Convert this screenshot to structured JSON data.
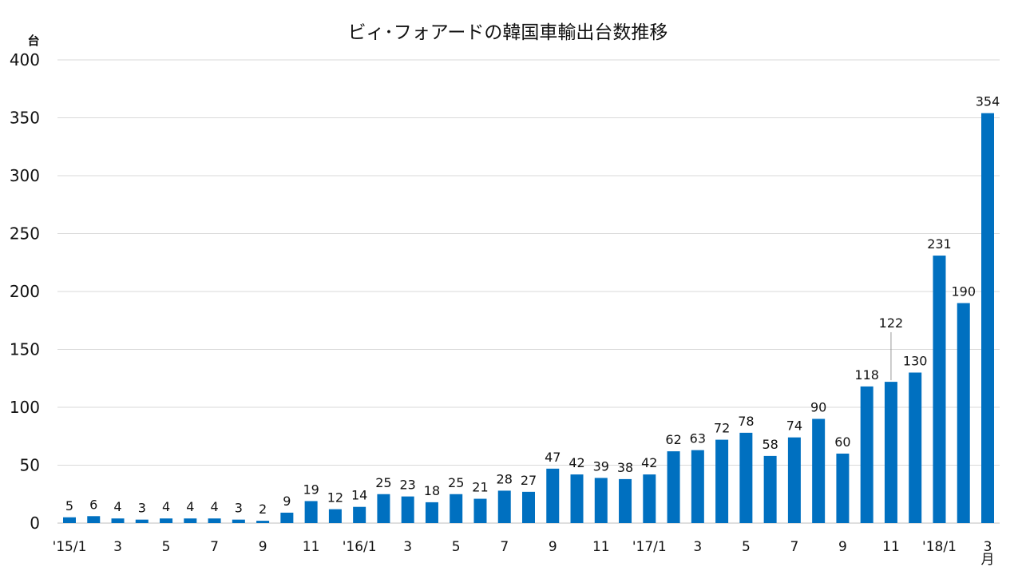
{
  "chart_data": {
    "type": "bar",
    "title": "ビィ･フォアードの韓国車輸出台数推移",
    "ylabel": "台",
    "xunit": "月",
    "ylim": [
      0,
      400
    ],
    "yticks": [
      0,
      50,
      100,
      150,
      200,
      250,
      300,
      350,
      400
    ],
    "grid": true,
    "bar_color": "#0070c0",
    "categories": [
      "'15/1",
      "",
      "3",
      "",
      "5",
      "",
      "7",
      "",
      "9",
      "",
      "11",
      "",
      "'16/1",
      "",
      "3",
      "",
      "5",
      "",
      "7",
      "",
      "9",
      "",
      "11",
      "",
      "'17/1",
      "",
      "3",
      "",
      "5",
      "",
      "7",
      "",
      "9",
      "",
      "11",
      "",
      "'18/1",
      "",
      "3"
    ],
    "values": [
      5,
      6,
      4,
      3,
      4,
      4,
      4,
      3,
      2,
      9,
      19,
      12,
      14,
      25,
      23,
      18,
      25,
      21,
      28,
      27,
      47,
      42,
      39,
      38,
      42,
      62,
      63,
      72,
      78,
      58,
      74,
      90,
      60,
      118,
      122,
      130,
      231,
      190,
      354
    ]
  }
}
